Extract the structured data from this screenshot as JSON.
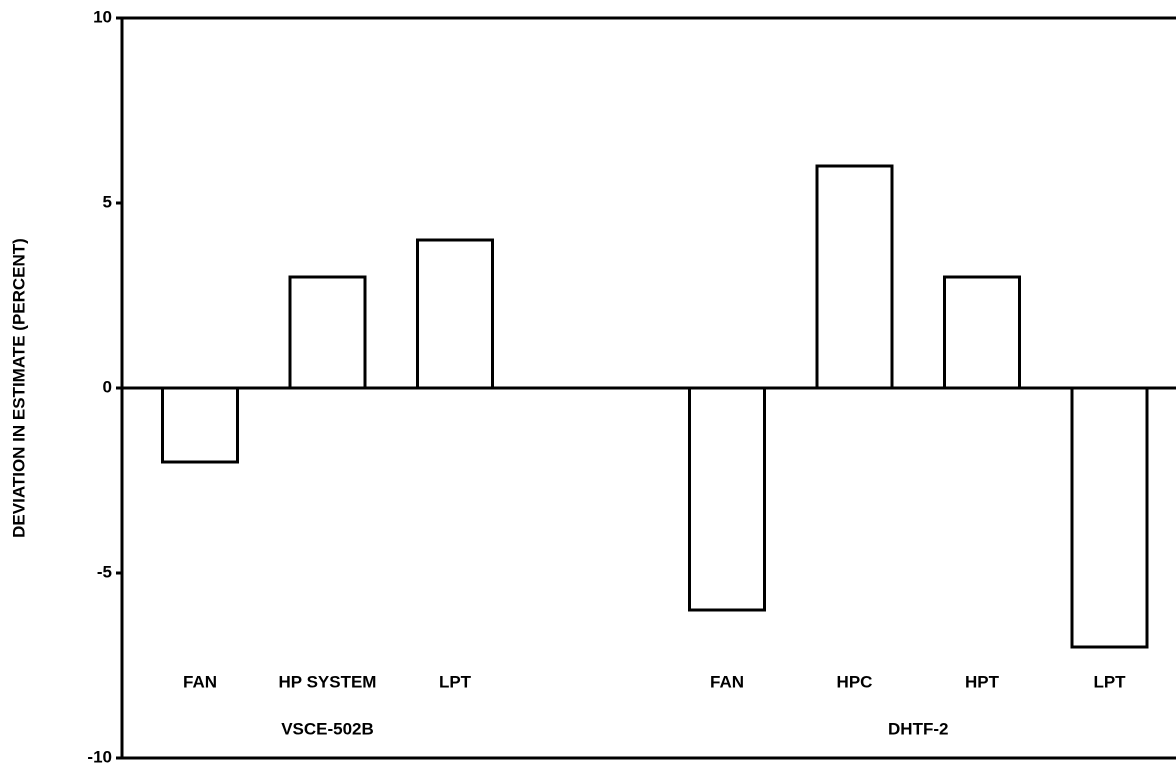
{
  "chart_data": {
    "type": "bar",
    "y_axis_label": "DEVIATION IN ESTIMATE (PERCENT)",
    "groups": [
      {
        "label": "VSCE-502B",
        "categories": [
          "FAN",
          "HP SYSTEM",
          "LPT"
        ],
        "values": [
          -2,
          3,
          4
        ]
      },
      {
        "label": "DHTF-2",
        "categories": [
          "FAN",
          "HPC",
          "HPT",
          "LPT"
        ],
        "values": [
          -6,
          6,
          3,
          -7
        ]
      }
    ],
    "ylim": [
      -10,
      10
    ],
    "yticks": [
      -10,
      -5,
      0,
      5,
      10
    ],
    "color": "#ffffff",
    "edge_color": "#000000"
  }
}
